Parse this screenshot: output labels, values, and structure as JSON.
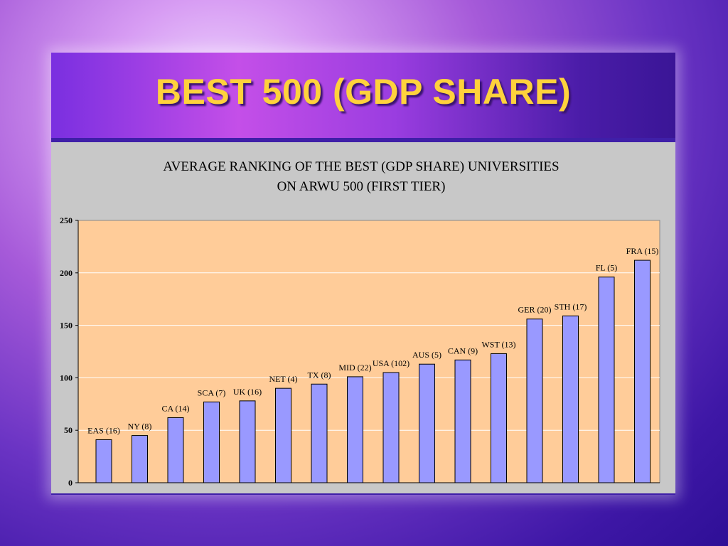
{
  "slide": {
    "title": "BEST 500 (GDP SHARE)"
  },
  "chart_data": {
    "type": "bar",
    "title_line1": "AVERAGE RANKING OF THE BEST (GDP SHARE) UNIVERSITIES",
    "title_line2": "ON ARWU 500 (FIRST TIER)",
    "categories": [
      "EAS (16)",
      "NY (8)",
      "CA (14)",
      "SCA (7)",
      "UK (16)",
      "NET (4)",
      "TX (8)",
      "MID (22)",
      "USA (102)",
      "AUS (5)",
      "CAN (9)",
      "WST (13)",
      "GER (20)",
      "STH (17)",
      "FL (5)",
      "FRA (15)"
    ],
    "values": [
      41,
      45,
      62,
      77,
      78,
      90,
      94,
      101,
      105,
      113,
      117,
      123,
      156,
      159,
      196,
      212
    ],
    "yticks": [
      0,
      50,
      100,
      150,
      200,
      250
    ],
    "ylim": [
      0,
      250
    ],
    "grid": true,
    "colors": {
      "bar": "#9999ff",
      "bar_border": "#000000",
      "plot_bg": "#ffcc99",
      "grid": "#ffffff"
    }
  }
}
